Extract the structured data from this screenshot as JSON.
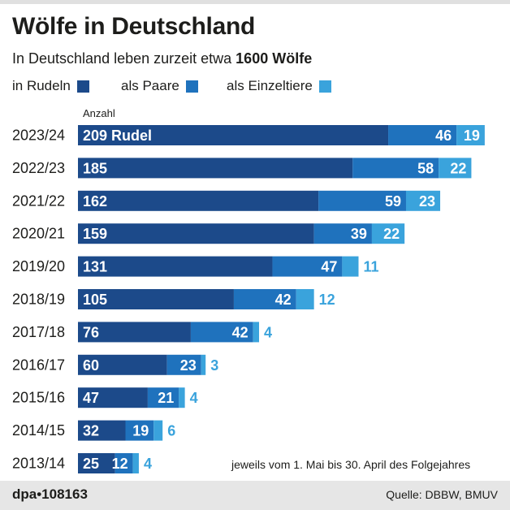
{
  "title": "Wölfe in Deutschland",
  "subtitle_prefix": "In Deutschland leben zurzeit etwa ",
  "subtitle_bold": "1600 Wölfe",
  "axis_label": "Anzahl",
  "footnote": "jeweils vom 1. Mai bis 30. April des Folgejahres",
  "footer": {
    "id": "dpa•108163",
    "source": "Quelle: DBBW, BMUV"
  },
  "colors": {
    "rudel": "#1c4a8a",
    "paare": "#1f72bd",
    "einzel": "#3aa3dc"
  },
  "chart_data": {
    "type": "bar",
    "orientation": "horizontal",
    "stacked": true,
    "categories": [
      "2023/24",
      "2022/23",
      "2021/22",
      "2020/21",
      "2019/20",
      "2018/19",
      "2017/18",
      "2016/17",
      "2015/16",
      "2014/15",
      "2013/14"
    ],
    "series": [
      {
        "name": "in Rudeln",
        "values": [
          209,
          185,
          162,
          159,
          131,
          105,
          76,
          60,
          47,
          32,
          25
        ]
      },
      {
        "name": "als Paare",
        "values": [
          46,
          58,
          59,
          39,
          47,
          42,
          42,
          23,
          21,
          19,
          12
        ]
      },
      {
        "name": "als Einzeltiere",
        "values": [
          19,
          22,
          23,
          22,
          11,
          12,
          4,
          3,
          4,
          6,
          4
        ]
      }
    ],
    "first_label_suffix": " Rudel",
    "xlabel": "Anzahl",
    "xlim": [
      0,
      280
    ],
    "legend_position": "top-left"
  }
}
